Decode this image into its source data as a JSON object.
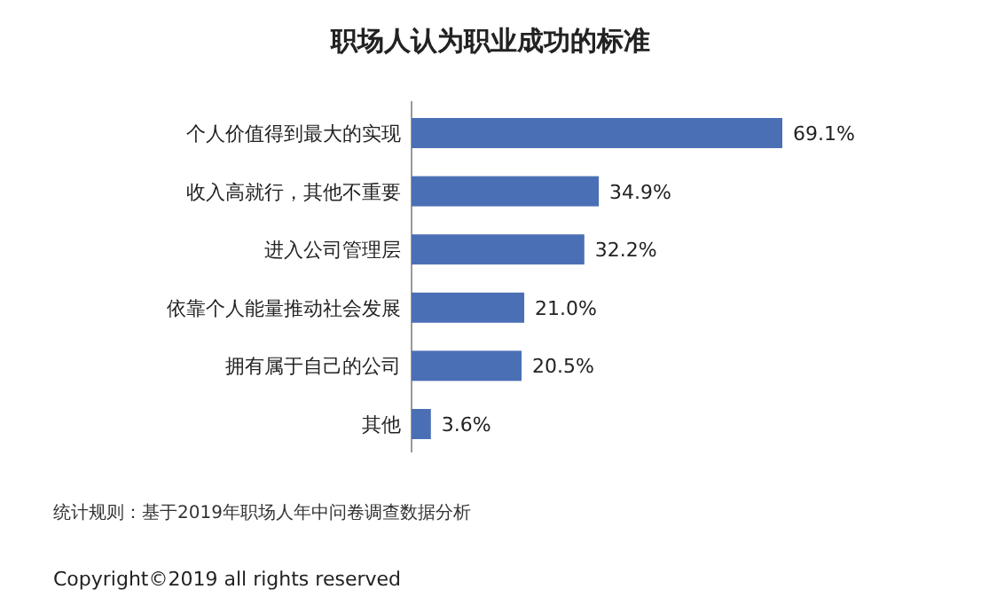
{
  "chart_data": {
    "type": "bar",
    "orientation": "horizontal",
    "title": "职场人认为职业成功的标准",
    "categories": [
      "个人价值得到最大的实现",
      "收入高就行，其他不重要",
      "进入公司管理层",
      "依靠个人能量推动社会发展",
      "拥有属于自己的公司",
      "其他"
    ],
    "values": [
      69.1,
      34.9,
      32.2,
      21.0,
      20.5,
      3.6
    ],
    "value_labels": [
      "69.1%",
      "34.9%",
      "32.2%",
      "21.0%",
      "20.5%",
      "3.6%"
    ],
    "color": "#4a6fb5",
    "annotations": [
      "统计规则：基于2019年职场人年中问卷调查数据分析",
      "Copyright©2019 all rights reserved"
    ]
  }
}
